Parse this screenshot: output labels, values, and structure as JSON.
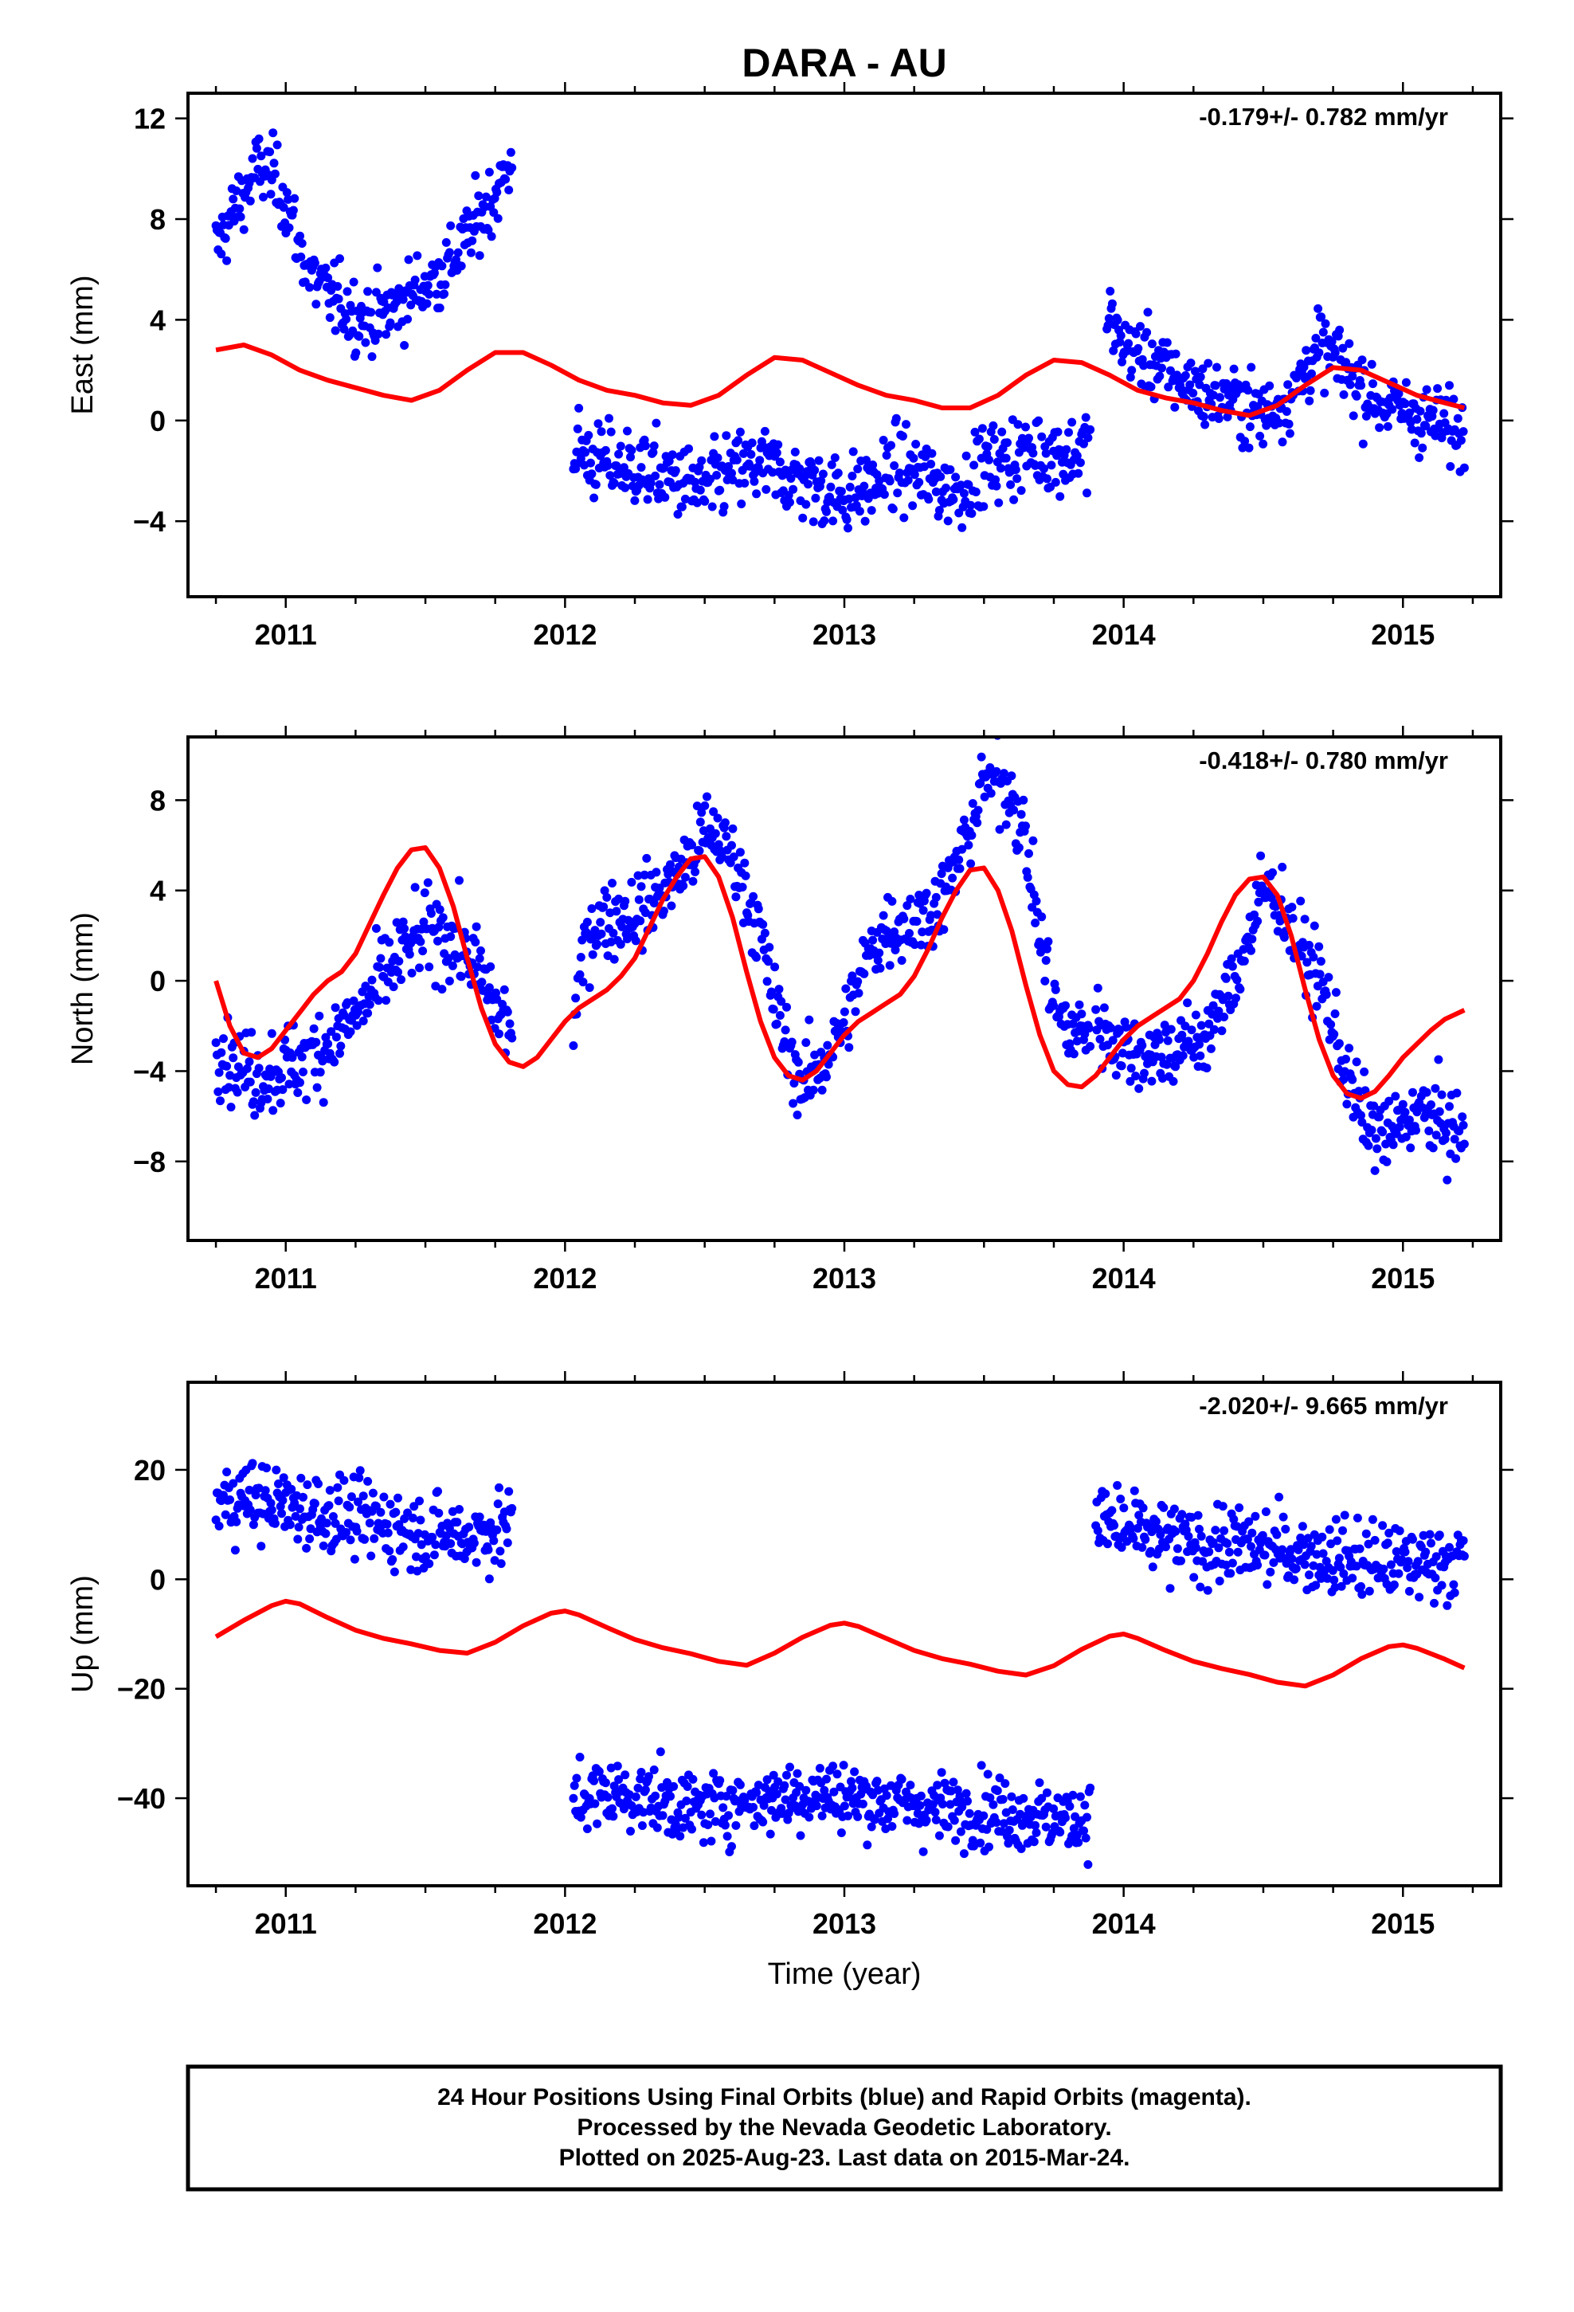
{
  "figure": {
    "title": "DARA - AU",
    "xlabel": "Time (year)",
    "footer": [
      "24 Hour Positions Using Final Orbits (blue) and Rapid Orbits (magenta).",
      "Processed by the Nevada Geodetic Laboratory.",
      "Plotted on 2025-Aug-23. Last data on 2015-Mar-24."
    ]
  },
  "colors": {
    "final_orbits": "#0000ff",
    "model_curve": "#ff0000",
    "frame": "#000000"
  },
  "chart_data": [
    {
      "type": "scatter",
      "panel": "east",
      "ylabel": "East (mm)",
      "rate_text": "-0.179+/- 0.782 mm/yr",
      "xlim": [
        2010.65,
        2015.35
      ],
      "ylim": [
        -7,
        13
      ],
      "xticks": [
        2011,
        2012,
        2013,
        2014,
        2015
      ],
      "yticks": [
        -4,
        0,
        4,
        8,
        12
      ],
      "series": [
        {
          "kind": "points",
          "segments": [
            {
              "x": [
                2010.75,
                2010.8,
                2010.85,
                2010.9,
                2010.95,
                2011.0,
                2011.05,
                2011.1,
                2011.15,
                2011.2,
                2011.25,
                2011.3,
                2011.35,
                2011.4,
                2011.45,
                2011.5,
                2011.55,
                2011.6,
                2011.65,
                2011.7,
                2011.75,
                2011.81
              ],
              "y": [
                6.8,
                8.0,
                9.0,
                10.0,
                9.8,
                8.8,
                6.8,
                5.6,
                5.0,
                4.6,
                4.2,
                4.0,
                4.2,
                4.6,
                5.0,
                5.4,
                5.8,
                6.4,
                7.2,
                8.2,
                9.0,
                10.2
              ],
              "spread": 1.0
            },
            {
              "x": [
                2012.03,
                2012.1,
                2012.2,
                2012.3,
                2012.4,
                2012.5,
                2012.6,
                2012.7,
                2012.8,
                2012.9,
                2013.0,
                2013.1,
                2013.2,
                2013.3,
                2013.4,
                2013.5,
                2013.6,
                2013.7,
                2013.8,
                2013.88
              ],
              "y": [
                -1.0,
                -1.6,
                -1.8,
                -2.0,
                -2.4,
                -2.8,
                -2.0,
                -1.8,
                -2.2,
                -2.6,
                -3.0,
                -2.6,
                -1.8,
                -2.4,
                -2.8,
                -1.8,
                -1.4,
                -1.2,
                -1.4,
                -1.0
              ],
              "spread": 1.1
            },
            {
              "x": [
                2013.94,
                2014.0,
                2014.1,
                2014.2,
                2014.3,
                2014.4,
                2014.5,
                2014.6,
                2014.7,
                2014.8,
                2014.9,
                2015.0,
                2015.1,
                2015.2,
                2015.22
              ],
              "y": [
                4.2,
                3.0,
                2.4,
                1.6,
                1.0,
                0.8,
                0.2,
                1.0,
                3.0,
                2.0,
                0.8,
                0.4,
                0.0,
                -0.4,
                -0.6
              ],
              "spread": 1.0
            }
          ]
        },
        {
          "kind": "curve",
          "x": [
            2010.75,
            2010.85,
            2010.95,
            2011.05,
            2011.15,
            2011.25,
            2011.35,
            2011.45,
            2011.55,
            2011.65,
            2011.75,
            2011.85,
            2011.95,
            2012.05,
            2012.15,
            2012.25,
            2012.35,
            2012.45,
            2012.55,
            2012.65,
            2012.75,
            2012.85,
            2012.95,
            2013.05,
            2013.15,
            2013.25,
            2013.35,
            2013.45,
            2013.55,
            2013.65,
            2013.75,
            2013.85,
            2013.95,
            2014.05,
            2014.15,
            2014.25,
            2014.35,
            2014.45,
            2014.55,
            2014.65,
            2014.75,
            2014.85,
            2014.95,
            2015.05,
            2015.15,
            2015.22
          ],
          "y": [
            2.8,
            3.0,
            2.6,
            2.0,
            1.6,
            1.3,
            1.0,
            0.8,
            1.2,
            2.0,
            2.7,
            2.7,
            2.2,
            1.6,
            1.2,
            1.0,
            0.7,
            0.6,
            1.0,
            1.8,
            2.5,
            2.4,
            1.9,
            1.4,
            1.0,
            0.8,
            0.5,
            0.5,
            1.0,
            1.8,
            2.4,
            2.3,
            1.8,
            1.2,
            0.9,
            0.7,
            0.4,
            0.2,
            0.6,
            1.4,
            2.1,
            2.0,
            1.5,
            1.0,
            0.7,
            0.5
          ]
        }
      ]
    },
    {
      "type": "scatter",
      "panel": "north",
      "ylabel": "North (mm)",
      "rate_text": "-0.418+/- 0.780 mm/yr",
      "xlim": [
        2010.65,
        2015.35
      ],
      "ylim": [
        -11.5,
        10.8
      ],
      "xticks": [
        2011,
        2012,
        2013,
        2014,
        2015
      ],
      "yticks": [
        -8,
        -4,
        0,
        4,
        8
      ],
      "series": [
        {
          "kind": "points",
          "segments": [
            {
              "x": [
                2010.75,
                2010.8,
                2010.85,
                2010.9,
                2010.95,
                2011.0,
                2011.05,
                2011.1,
                2011.15,
                2011.2,
                2011.25,
                2011.3,
                2011.35,
                2011.4,
                2011.45,
                2011.5,
                2011.55,
                2011.6,
                2011.65,
                2011.7,
                2011.75,
                2011.81
              ],
              "y": [
                -2.5,
                -3.5,
                -4.0,
                -4.2,
                -4.0,
                -3.8,
                -3.6,
                -3.2,
                -2.8,
                -2.2,
                -1.6,
                -0.8,
                0.2,
                1.0,
                1.6,
                2.0,
                2.2,
                1.8,
                1.2,
                0.2,
                -1.2,
                -2.2
              ],
              "spread": 1.3
            },
            {
              "x": [
                2012.03,
                2012.08,
                2012.15,
                2012.25,
                2012.35,
                2012.45,
                2012.5,
                2012.55,
                2012.62,
                2012.7,
                2012.75,
                2012.8,
                2012.85,
                2012.9,
                2012.95,
                2013.0,
                2013.08,
                2013.15,
                2013.25,
                2013.35,
                2013.4,
                2013.45,
                2013.5,
                2013.55,
                2013.6,
                2013.65,
                2013.7,
                2013.75,
                2013.8,
                2013.88
              ],
              "y": [
                -2.0,
                2.2,
                2.8,
                3.0,
                4.0,
                5.4,
                6.6,
                6.4,
                5.0,
                2.0,
                -1.0,
                -3.0,
                -4.6,
                -4.0,
                -3.0,
                -2.0,
                1.0,
                2.4,
                2.6,
                3.6,
                5.0,
                6.8,
                8.8,
                9.0,
                8.4,
                6.0,
                2.0,
                -1.0,
                -2.4,
                -2.0
              ],
              "spread": 1.2
            },
            {
              "x": [
                2013.9,
                2013.95,
                2014.0,
                2014.1,
                2014.2,
                2014.3,
                2014.38,
                2014.45,
                2014.5,
                2014.55,
                2014.62,
                2014.7,
                2014.75,
                2014.8,
                2014.85,
                2014.9,
                2014.95,
                2015.0,
                2015.05,
                2015.1,
                2015.15,
                2015.2,
                2015.22
              ],
              "y": [
                -1.8,
                -2.4,
                -3.0,
                -3.2,
                -3.0,
                -2.4,
                -0.4,
                2.0,
                4.0,
                3.8,
                1.6,
                0.2,
                -2.0,
                -4.2,
                -6.0,
                -6.6,
                -7.0,
                -6.2,
                -5.8,
                -6.0,
                -6.4,
                -6.8,
                -7.0
              ],
              "spread": 1.2
            }
          ]
        },
        {
          "kind": "curve",
          "x": [
            2010.75,
            2010.8,
            2010.85,
            2010.9,
            2010.95,
            2011.0,
            2011.05,
            2011.1,
            2011.15,
            2011.2,
            2011.25,
            2011.3,
            2011.35,
            2011.4,
            2011.45,
            2011.5,
            2011.55,
            2011.6,
            2011.65,
            2011.7,
            2011.75,
            2011.8,
            2011.85,
            2011.9,
            2011.95,
            2012.0,
            2012.05,
            2012.1,
            2012.15,
            2012.2,
            2012.25,
            2012.3,
            2012.35,
            2012.4,
            2012.45,
            2012.5,
            2012.55,
            2012.6,
            2012.65,
            2012.7,
            2012.75,
            2012.8,
            2012.85,
            2012.9,
            2012.95,
            2013.0,
            2013.05,
            2013.1,
            2013.15,
            2013.2,
            2013.25,
            2013.3,
            2013.35,
            2013.4,
            2013.45,
            2013.5,
            2013.55,
            2013.6,
            2013.65,
            2013.7,
            2013.75,
            2013.8,
            2013.85,
            2013.9,
            2013.95,
            2014.0,
            2014.05,
            2014.1,
            2014.15,
            2014.2,
            2014.25,
            2014.3,
            2014.35,
            2014.4,
            2014.45,
            2014.5,
            2014.55,
            2014.6,
            2014.65,
            2014.7,
            2014.75,
            2014.8,
            2014.85,
            2014.9,
            2014.95,
            2015.0,
            2015.05,
            2015.1,
            2015.15,
            2015.22
          ],
          "y": [
            0.0,
            -2.0,
            -3.2,
            -3.4,
            -3.0,
            -2.2,
            -1.4,
            -0.6,
            0.0,
            0.4,
            1.2,
            2.5,
            3.8,
            5.0,
            5.8,
            5.9,
            5.0,
            3.3,
            1.0,
            -1.2,
            -2.8,
            -3.6,
            -3.8,
            -3.4,
            -2.6,
            -1.8,
            -1.2,
            -0.8,
            -0.4,
            0.2,
            1.0,
            2.3,
            3.6,
            4.6,
            5.4,
            5.5,
            4.6,
            2.8,
            0.4,
            -1.8,
            -3.4,
            -4.2,
            -4.4,
            -4.0,
            -3.2,
            -2.4,
            -1.8,
            -1.4,
            -1.0,
            -0.6,
            0.2,
            1.4,
            2.8,
            4.0,
            4.9,
            5.0,
            4.0,
            2.2,
            -0.2,
            -2.4,
            -4.0,
            -4.6,
            -4.7,
            -4.2,
            -3.4,
            -2.6,
            -2.0,
            -1.6,
            -1.2,
            -0.8,
            0.0,
            1.2,
            2.6,
            3.8,
            4.5,
            4.6,
            3.8,
            2.0,
            -0.4,
            -2.6,
            -4.2,
            -5.0,
            -5.2,
            -4.9,
            -4.2,
            -3.4,
            -2.8,
            -2.2,
            -1.7,
            -1.3
          ]
        }
      ]
    },
    {
      "type": "scatter",
      "panel": "up",
      "ylabel": "Up (mm)",
      "rate_text": "-2.020+/- 9.665 mm/yr",
      "xlim": [
        2010.65,
        2015.35
      ],
      "ylim": [
        -56,
        36
      ],
      "xticks": [
        2011,
        2012,
        2013,
        2014,
        2015
      ],
      "yticks": [
        -40,
        -20,
        0,
        20
      ],
      "series": [
        {
          "kind": "points",
          "segments": [
            {
              "x": [
                2010.75,
                2010.85,
                2010.95,
                2011.05,
                2011.15,
                2011.25,
                2011.35,
                2011.45,
                2011.55,
                2011.65,
                2011.75,
                2011.81
              ],
              "y": [
                14,
                15,
                14,
                13,
                12,
                11,
                10,
                9,
                8,
                8,
                9,
                10
              ],
              "spread": 5.0
            },
            {
              "x": [
                2012.03,
                2012.15,
                2012.3,
                2012.45,
                2012.6,
                2012.75,
                2012.9,
                2013.05,
                2013.2,
                2013.35,
                2013.5,
                2013.65,
                2013.8,
                2013.88
              ],
              "y": [
                -40,
                -39,
                -40,
                -42,
                -41,
                -40,
                -39,
                -40,
                -41,
                -42,
                -42,
                -43,
                -44,
                -43
              ],
              "spread": 4.5
            },
            {
              "x": [
                2013.9,
                2014.0,
                2014.15,
                2014.3,
                2014.45,
                2014.6,
                2014.75,
                2014.9,
                2015.05,
                2015.22
              ],
              "y": [
                11,
                9,
                7,
                6,
                6,
                5,
                4,
                3,
                3,
                4
              ],
              "spread": 5.0
            }
          ]
        },
        {
          "kind": "curve",
          "x": [
            2010.75,
            2010.85,
            2010.95,
            2011.0,
            2011.05,
            2011.15,
            2011.25,
            2011.35,
            2011.45,
            2011.55,
            2011.65,
            2011.75,
            2011.85,
            2011.95,
            2012.0,
            2012.05,
            2012.15,
            2012.25,
            2012.35,
            2012.45,
            2012.55,
            2012.65,
            2012.75,
            2012.85,
            2012.95,
            2013.0,
            2013.05,
            2013.15,
            2013.25,
            2013.35,
            2013.45,
            2013.55,
            2013.65,
            2013.75,
            2013.85,
            2013.95,
            2014.0,
            2014.05,
            2014.15,
            2014.25,
            2014.35,
            2014.45,
            2014.55,
            2014.65,
            2014.75,
            2014.85,
            2014.95,
            2015.0,
            2015.05,
            2015.15,
            2015.22
          ],
          "y": [
            -10.5,
            -7.5,
            -4.8,
            -4.0,
            -4.5,
            -7.0,
            -9.3,
            -10.8,
            -11.8,
            -13.0,
            -13.5,
            -11.5,
            -8.5,
            -6.2,
            -5.8,
            -6.5,
            -8.8,
            -11.0,
            -12.5,
            -13.6,
            -15.0,
            -15.7,
            -13.5,
            -10.6,
            -8.4,
            -8.0,
            -8.6,
            -10.8,
            -13.0,
            -14.5,
            -15.5,
            -16.8,
            -17.5,
            -15.8,
            -12.8,
            -10.4,
            -10.0,
            -10.8,
            -13.0,
            -15.0,
            -16.3,
            -17.4,
            -18.8,
            -19.5,
            -17.5,
            -14.5,
            -12.3,
            -12.0,
            -12.6,
            -14.6,
            -16.2
          ]
        }
      ]
    }
  ]
}
